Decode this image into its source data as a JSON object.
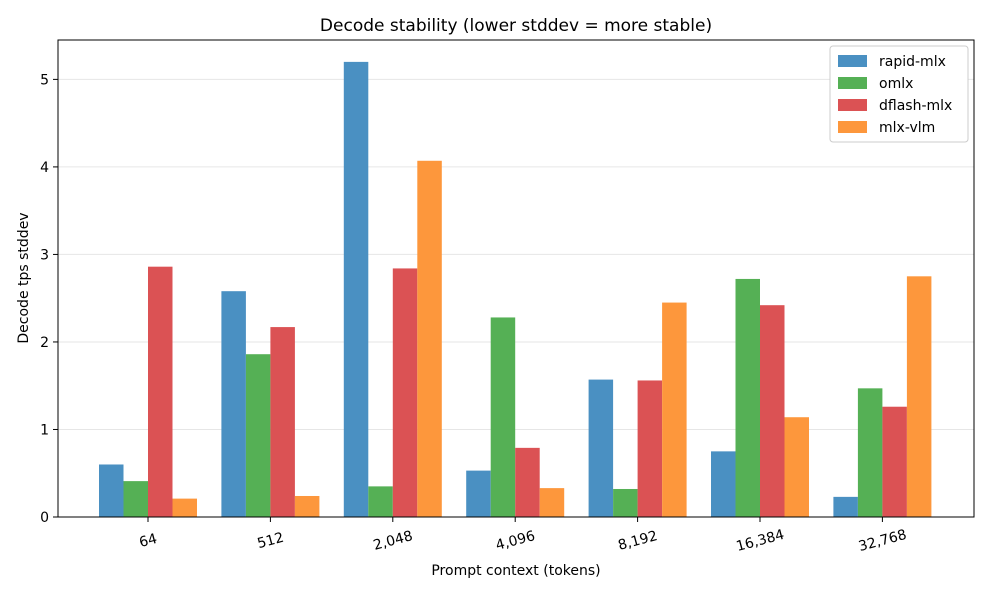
{
  "chart_data": {
    "type": "bar",
    "title": "Decode stability (lower stddev = more stable)",
    "xlabel": "Prompt context (tokens)",
    "ylabel": "Decode tps stddev",
    "categories": [
      "64",
      "512",
      "2,048",
      "4,096",
      "8,192",
      "16,384",
      "32,768"
    ],
    "ylim": [
      0,
      5.45
    ],
    "yticks": [
      0,
      1,
      2,
      3,
      4,
      5
    ],
    "grid": "y",
    "legend_position": "top-right",
    "series": [
      {
        "name": "rapid-mlx",
        "color": "#4a90c2",
        "values": [
          0.6,
          2.58,
          5.2,
          0.53,
          1.57,
          0.75,
          0.23
        ]
      },
      {
        "name": "omlx",
        "color": "#55b055",
        "values": [
          0.41,
          1.86,
          0.35,
          2.28,
          0.32,
          2.72,
          1.47
        ]
      },
      {
        "name": "dflash-mlx",
        "color": "#db5254",
        "values": [
          2.86,
          2.17,
          2.84,
          0.79,
          1.56,
          2.42,
          1.26
        ]
      },
      {
        "name": "mlx-vlm",
        "color": "#fd973c",
        "values": [
          0.21,
          0.24,
          4.07,
          0.33,
          2.45,
          1.14,
          2.75
        ]
      }
    ]
  }
}
